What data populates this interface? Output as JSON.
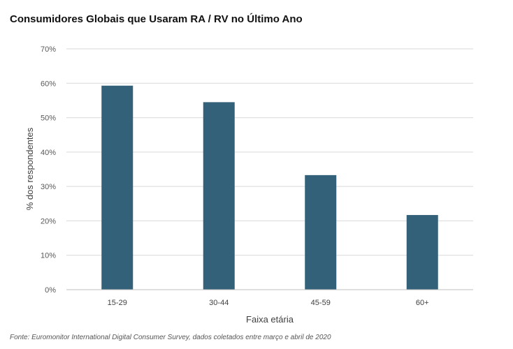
{
  "chart_data": {
    "type": "bar",
    "title": "Consumidores Globais que Usaram RA / RV no Último Ano",
    "xlabel": "Faixa etária",
    "ylabel": "% dos respondentes",
    "categories": [
      "15-29",
      "30-44",
      "45-59",
      "60+"
    ],
    "values": [
      59.3,
      54.5,
      33.3,
      21.7
    ],
    "ylim": [
      0,
      70
    ],
    "yticks": [
      0,
      10,
      20,
      30,
      40,
      50,
      60,
      70
    ],
    "ytick_labels": [
      "0%",
      "10%",
      "20%",
      "30%",
      "40%",
      "50%",
      "60%",
      "70%"
    ],
    "grid": true,
    "legend": "none",
    "bar_color": "#336179",
    "grid_color": "#d9d9d9",
    "axis_color": "#bfbfbf"
  },
  "source": "Fonte: Euromonitor International Digital Consumer Survey, dados coletados entre março e abril de 2020"
}
